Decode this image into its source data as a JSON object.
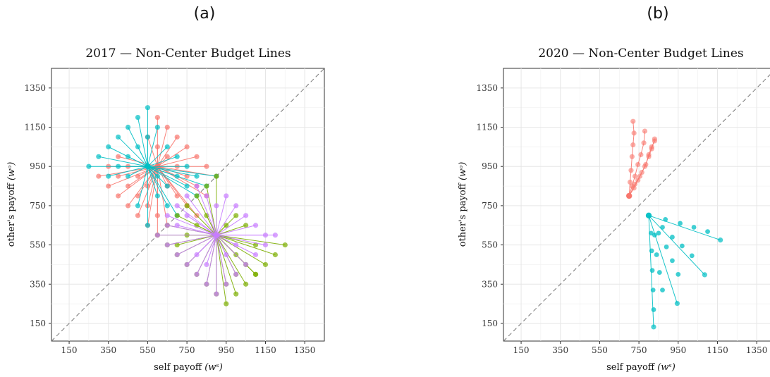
{
  "figure": {
    "panels": [
      {
        "letter": "(a)",
        "chart_data": {
          "type": "scatter",
          "title": "2017 — Non-Center Budget Lines",
          "xlabel": "self payoff",
          "xlabel_sym": "(wˢ)",
          "ylabel": "other's payoff",
          "ylabel_sym": "(wᵒ)",
          "xlim": [
            60,
            1450
          ],
          "ylim": [
            60,
            1450
          ],
          "xticks": [
            150,
            350,
            550,
            750,
            950,
            1150,
            1350
          ],
          "yticks": [
            150,
            350,
            550,
            750,
            950,
            1150,
            1350
          ],
          "grid": true,
          "reference_line": "diagonal x = y (dashed)",
          "groups": [
            {
              "color": "#F8766D",
              "center": [
                600,
                950
              ],
              "endpoints": [
                [
                  300,
                  900
                ],
                [
                  350,
                  850
                ],
                [
                  400,
                  800
                ],
                [
                  450,
                  750
                ],
                [
                  500,
                  700
                ],
                [
                  550,
                  650
                ],
                [
                  600,
                  600
                ],
                [
                  650,
                  850
                ],
                [
                  700,
                  800
                ],
                [
                  750,
                  750
                ],
                [
                  800,
                  700
                ],
                [
                  350,
                  950
                ],
                [
                  400,
                  900
                ],
                [
                  450,
                  850
                ],
                [
                  500,
                  800
                ],
                [
                  550,
                  750
                ],
                [
                  600,
                  700
                ],
                [
                  650,
                  650
                ],
                [
                  400,
                  1000
                ],
                [
                  450,
                  950
                ],
                [
                  500,
                  900
                ],
                [
                  550,
                  850
                ],
                [
                  600,
                  1200
                ],
                [
                  650,
                  1150
                ],
                [
                  700,
                  1100
                ],
                [
                  750,
                  1050
                ],
                [
                  800,
                  1000
                ],
                [
                  850,
                  950
                ],
                [
                  900,
                  900
                ],
                [
                  550,
                  1100
                ],
                [
                  600,
                  1050
                ],
                [
                  650,
                  1000
                ],
                [
                  700,
                  950
                ],
                [
                  750,
                  900
                ],
                [
                  800,
                  850
                ],
                [
                  850,
                  800
                ]
              ]
            },
            {
              "color": "#00BFC4",
              "center": [
                550,
                950
              ],
              "endpoints": [
                [
                  250,
                  950
                ],
                [
                  300,
                  1000
                ],
                [
                  350,
                  1050
                ],
                [
                  400,
                  1100
                ],
                [
                  450,
                  1150
                ],
                [
                  500,
                  1200
                ],
                [
                  550,
                  1250
                ],
                [
                  350,
                  900
                ],
                [
                  400,
                  950
                ],
                [
                  450,
                  1000
                ],
                [
                  500,
                  1050
                ],
                [
                  550,
                  1100
                ],
                [
                  600,
                  1150
                ],
                [
                  650,
                  1050
                ],
                [
                  700,
                  1000
                ],
                [
                  750,
                  950
                ],
                [
                  800,
                  900
                ],
                [
                  850,
                  850
                ],
                [
                  900,
                  900
                ],
                [
                  650,
                  750
                ],
                [
                  700,
                  700
                ],
                [
                  600,
                  800
                ],
                [
                  550,
                  650
                ],
                [
                  500,
                  750
                ],
                [
                  650,
                  850
                ],
                [
                  700,
                  900
                ],
                [
                  750,
                  850
                ],
                [
                  800,
                  800
                ],
                [
                  600,
                  900
                ],
                [
                  450,
                  900
                ]
              ]
            },
            {
              "color": "#7CAE00",
              "center": [
                900,
                600
              ],
              "endpoints": [
                [
                  600,
                  600
                ],
                [
                  650,
                  650
                ],
                [
                  700,
                  700
                ],
                [
                  750,
                  750
                ],
                [
                  800,
                  800
                ],
                [
                  850,
                  850
                ],
                [
                  900,
                  900
                ],
                [
                  650,
                  550
                ],
                [
                  700,
                  500
                ],
                [
                  750,
                  450
                ],
                [
                  800,
                  400
                ],
                [
                  850,
                  350
                ],
                [
                  900,
                  300
                ],
                [
                  950,
                  250
                ],
                [
                  1000,
                  300
                ],
                [
                  1050,
                  350
                ],
                [
                  1100,
                  400
                ],
                [
                  1150,
                  450
                ],
                [
                  1200,
                  500
                ],
                [
                  1250,
                  550
                ],
                [
                  1000,
                  500
                ],
                [
                  1050,
                  450
                ],
                [
                  1100,
                  400
                ],
                [
                  750,
                  600
                ],
                [
                  800,
                  650
                ],
                [
                  850,
                  700
                ],
                [
                  1000,
                  700
                ],
                [
                  950,
                  650
                ],
                [
                  700,
                  550
                ],
                [
                  1000,
                  400
                ],
                [
                  950,
                  350
                ],
                [
                  1100,
                  550
                ],
                [
                  1050,
                  650
                ]
              ]
            },
            {
              "color": "#C77CFF",
              "center": [
                900,
                600
              ],
              "endpoints": [
                [
                  650,
                  700
                ],
                [
                  700,
                  750
                ],
                [
                  750,
                  800
                ],
                [
                  800,
                  850
                ],
                [
                  850,
                  800
                ],
                [
                  900,
                  750
                ],
                [
                  950,
                  800
                ],
                [
                  1000,
                  750
                ],
                [
                  1050,
                  700
                ],
                [
                  1100,
                  650
                ],
                [
                  1150,
                  600
                ],
                [
                  1200,
                  600
                ],
                [
                  1150,
                  550
                ],
                [
                  1100,
                  500
                ],
                [
                  1050,
                  450
                ],
                [
                  1000,
                  400
                ],
                [
                  950,
                  350
                ],
                [
                  900,
                  300
                ],
                [
                  850,
                  350
                ],
                [
                  800,
                  400
                ],
                [
                  750,
                  450
                ],
                [
                  700,
                  500
                ],
                [
                  650,
                  550
                ],
                [
                  600,
                  600
                ],
                [
                  650,
                  650
                ],
                [
                  700,
                  650
                ],
                [
                  750,
                  700
                ],
                [
                  800,
                  500
                ],
                [
                  850,
                  450
                ],
                [
                  1000,
                  550
                ],
                [
                  950,
                  500
                ]
              ]
            }
          ]
        }
      },
      {
        "letter": "(b)",
        "chart_data": {
          "type": "scatter",
          "title": "2020 — Non-Center Budget Lines",
          "xlabel": "self payoff",
          "xlabel_sym": "(wˢ)",
          "ylabel": "other's payoff",
          "ylabel_sym": "(wᵒ)",
          "xlim": [
            60,
            1450
          ],
          "ylim": [
            60,
            1450
          ],
          "xticks": [
            150,
            350,
            550,
            750,
            950,
            1150,
            1350
          ],
          "yticks": [
            150,
            350,
            550,
            750,
            950,
            1150,
            1350
          ],
          "grid": true,
          "reference_line": "diagonal x = y (dashed)",
          "groups": [
            {
              "color": "#F8766D",
              "style": "chain",
              "center": [
                700,
                800
              ],
              "chains": [
                [
                  [
                    700,
                    800
                  ],
                  [
                    705,
                    870
                  ],
                  [
                    710,
                    930
                  ],
                  [
                    715,
                    1000
                  ],
                  [
                    720,
                    1060
                  ],
                  [
                    725,
                    1120
                  ],
                  [
                    720,
                    1180
                  ]
                ],
                [
                  [
                    700,
                    800
                  ],
                  [
                    715,
                    850
                  ],
                  [
                    730,
                    900
                  ],
                  [
                    745,
                    960
                  ],
                  [
                    760,
                    1010
                  ],
                  [
                    775,
                    1070
                  ],
                  [
                    780,
                    1130
                  ]
                ],
                [
                  [
                    700,
                    800
                  ],
                  [
                    725,
                    840
                  ],
                  [
                    745,
                    880
                  ],
                  [
                    765,
                    920
                  ],
                  [
                    785,
                    960
                  ],
                  [
                    800,
                    1010
                  ],
                  [
                    815,
                    1050
                  ],
                  [
                    830,
                    1080
                  ]
                ],
                [
                  [
                    700,
                    800
                  ],
                  [
                    730,
                    860
                  ],
                  [
                    755,
                    900
                  ],
                  [
                    780,
                    950
                  ],
                  [
                    800,
                    1000
                  ],
                  [
                    815,
                    1040
                  ],
                  [
                    830,
                    1090
                  ]
                ]
              ]
            },
            {
              "color": "#00BFC4",
              "style": "rays",
              "center": [
                800,
                700
              ],
              "endpoints": [
                [
                  1165,
                  575
                ],
                [
                  1085,
                  398
                ],
                [
                  945,
                  252
                ],
                [
                  825,
                  132
                ]
              ],
              "inner_points": [
                [
                  885,
                  680
                ],
                [
                  960,
                  660
                ],
                [
                  1030,
                  640
                ],
                [
                  1100,
                  618
                ],
                [
                  870,
                  640
                ],
                [
                  920,
                  590
                ],
                [
                  970,
                  545
                ],
                [
                  1020,
                  495
                ],
                [
                  850,
                  610
                ],
                [
                  890,
                  540
                ],
                [
                  920,
                  470
                ],
                [
                  950,
                  400
                ],
                [
                  830,
                  600
                ],
                [
                  840,
                  500
                ],
                [
                  855,
                  410
                ],
                [
                  870,
                  320
                ],
                [
                  812,
                  610
                ],
                [
                  815,
                  520
                ],
                [
                  818,
                  420
                ],
                [
                  822,
                  320
                ],
                [
                  825,
                  220
                ]
              ]
            }
          ]
        }
      }
    ]
  }
}
